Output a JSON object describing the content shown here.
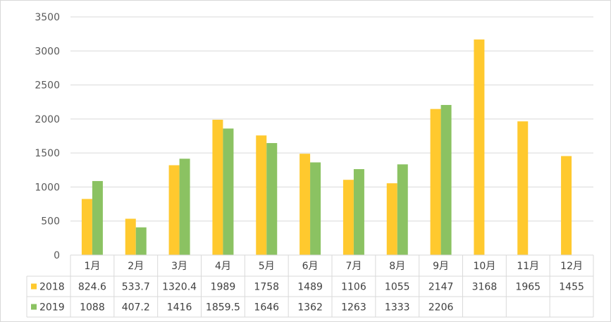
{
  "chart_data": {
    "type": "bar",
    "title": "",
    "xlabel": "",
    "ylabel": "",
    "ylim": [
      0,
      3500
    ],
    "yticks": [
      0,
      500,
      1000,
      1500,
      2000,
      2500,
      3000,
      3500
    ],
    "ytick_labels": [
      "0",
      "500",
      "1000",
      "1500",
      "2000",
      "2500",
      "3000",
      "3500"
    ],
    "grid": true,
    "legend_placement": "data-table",
    "categories": [
      "1月",
      "2月",
      "3月",
      "4月",
      "5月",
      "6月",
      "7月",
      "8月",
      "9月",
      "10月",
      "11月",
      "12月"
    ],
    "series": [
      {
        "name": "2018",
        "color": "#FFC92E",
        "values": [
          824.6,
          533.7,
          1320.4,
          1989,
          1758,
          1489,
          1106,
          1055,
          2147,
          3168,
          1965,
          1455
        ],
        "labels": [
          "824.6",
          "533.7",
          "1320.4",
          "1989",
          "1758",
          "1489",
          "1106",
          "1055",
          "2147",
          "3168",
          "1965",
          "1455"
        ]
      },
      {
        "name": "2019",
        "color": "#8BC262",
        "values": [
          1088,
          407.2,
          1416,
          1859.5,
          1646,
          1362,
          1263,
          1333,
          2206,
          null,
          null,
          null
        ],
        "labels": [
          "1088",
          "407.2",
          "1416",
          "1859.5",
          "1646",
          "1362",
          "1263",
          "1333",
          "2206",
          "",
          "",
          ""
        ]
      }
    ]
  }
}
